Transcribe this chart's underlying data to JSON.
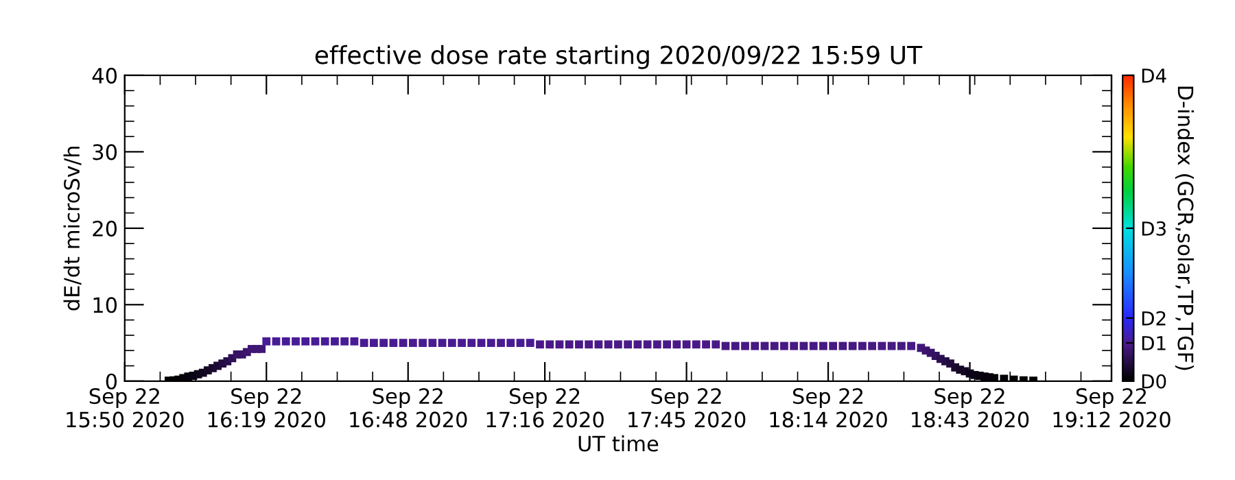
{
  "chart_data": {
    "type": "scatter",
    "title": "effective dose rate starting 2020/09/22 15:59 UT",
    "xlabel": "UT time",
    "ylabel": "dE/dt microSv/h",
    "clabel": "D-index (GCR,solar,TP,TGF)",
    "marker": "square",
    "grid": false,
    "xlim": [
      "2020-09-22T15:50",
      "2020-09-22T19:12"
    ],
    "xticks": [
      {
        "value": "2020-09-22T15:50",
        "label": "Sep 22\n15:50 2020"
      },
      {
        "value": "2020-09-22T16:19",
        "label": "Sep 22\n16:19 2020"
      },
      {
        "value": "2020-09-22T16:48",
        "label": "Sep 22\n16:48 2020"
      },
      {
        "value": "2020-09-22T17:16",
        "label": "Sep 22\n17:16 2020"
      },
      {
        "value": "2020-09-22T17:45",
        "label": "Sep 22\n17:45 2020"
      },
      {
        "value": "2020-09-22T18:14",
        "label": "Sep 22\n18:14 2020"
      },
      {
        "value": "2020-09-22T18:43",
        "label": "Sep 22\n18:43 2020"
      },
      {
        "value": "2020-09-22T19:12",
        "label": "Sep 22\n19:12 2020"
      }
    ],
    "ylim": [
      0,
      40
    ],
    "yticks": [
      0,
      10,
      20,
      30,
      40
    ],
    "clim": [
      0,
      40
    ],
    "cticks": [
      {
        "value": 0,
        "label": "D0"
      },
      {
        "value": 5,
        "label": "D1"
      },
      {
        "value": 8.25,
        "label": "D2"
      },
      {
        "value": 20,
        "label": "D3"
      },
      {
        "value": 40,
        "label": "D4"
      }
    ],
    "x": [
      "2020-09-22T15:59",
      "2020-09-22T16:00",
      "2020-09-22T16:01",
      "2020-09-22T16:02",
      "2020-09-22T16:03",
      "2020-09-22T16:04",
      "2020-09-22T16:05",
      "2020-09-22T16:06",
      "2020-09-22T16:07",
      "2020-09-22T16:08",
      "2020-09-22T16:09",
      "2020-09-22T16:10",
      "2020-09-22T16:11",
      "2020-09-22T16:12",
      "2020-09-22T16:13",
      "2020-09-22T16:14",
      "2020-09-22T16:15",
      "2020-09-22T16:16",
      "2020-09-22T16:17",
      "2020-09-22T16:18",
      "2020-09-22T16:19",
      "2020-09-22T16:21",
      "2020-09-22T16:23",
      "2020-09-22T16:25",
      "2020-09-22T16:27",
      "2020-09-22T16:29",
      "2020-09-22T16:31",
      "2020-09-22T16:33",
      "2020-09-22T16:35",
      "2020-09-22T16:37",
      "2020-09-22T16:39",
      "2020-09-22T16:41",
      "2020-09-22T16:43",
      "2020-09-22T16:45",
      "2020-09-22T16:47",
      "2020-09-22T16:49",
      "2020-09-22T16:51",
      "2020-09-22T16:53",
      "2020-09-22T16:55",
      "2020-09-22T16:57",
      "2020-09-22T16:59",
      "2020-09-22T17:01",
      "2020-09-22T17:03",
      "2020-09-22T17:05",
      "2020-09-22T17:07",
      "2020-09-22T17:09",
      "2020-09-22T17:11",
      "2020-09-22T17:13",
      "2020-09-22T17:15",
      "2020-09-22T17:17",
      "2020-09-22T17:19",
      "2020-09-22T17:21",
      "2020-09-22T17:23",
      "2020-09-22T17:25",
      "2020-09-22T17:27",
      "2020-09-22T17:29",
      "2020-09-22T17:31",
      "2020-09-22T17:33",
      "2020-09-22T17:35",
      "2020-09-22T17:37",
      "2020-09-22T17:39",
      "2020-09-22T17:41",
      "2020-09-22T17:43",
      "2020-09-22T17:45",
      "2020-09-22T17:47",
      "2020-09-22T17:49",
      "2020-09-22T17:51",
      "2020-09-22T17:53",
      "2020-09-22T17:55",
      "2020-09-22T17:57",
      "2020-09-22T17:59",
      "2020-09-22T18:01",
      "2020-09-22T18:03",
      "2020-09-22T18:05",
      "2020-09-22T18:07",
      "2020-09-22T18:09",
      "2020-09-22T18:11",
      "2020-09-22T18:13",
      "2020-09-22T18:15",
      "2020-09-22T18:17",
      "2020-09-22T18:19",
      "2020-09-22T18:21",
      "2020-09-22T18:23",
      "2020-09-22T18:25",
      "2020-09-22T18:27",
      "2020-09-22T18:29",
      "2020-09-22T18:31",
      "2020-09-22T18:33",
      "2020-09-22T18:34",
      "2020-09-22T18:35",
      "2020-09-22T18:36",
      "2020-09-22T18:37",
      "2020-09-22T18:38",
      "2020-09-22T18:39",
      "2020-09-22T18:40",
      "2020-09-22T18:41",
      "2020-09-22T18:42",
      "2020-09-22T18:43",
      "2020-09-22T18:44",
      "2020-09-22T18:45",
      "2020-09-22T18:46",
      "2020-09-22T18:47",
      "2020-09-22T18:48",
      "2020-09-22T18:50",
      "2020-09-22T18:52",
      "2020-09-22T18:54",
      "2020-09-22T18:56"
    ],
    "values": [
      0.05,
      0.1,
      0.2,
      0.4,
      0.6,
      0.7,
      0.9,
      1.1,
      1.4,
      1.7,
      2.0,
      2.3,
      2.6,
      3.0,
      3.5,
      3.5,
      3.8,
      4.2,
      4.2,
      4.2,
      5.2,
      5.2,
      5.2,
      5.2,
      5.2,
      5.2,
      5.2,
      5.2,
      5.2,
      5.2,
      5.0,
      5.0,
      5.0,
      5.0,
      5.0,
      5.0,
      5.0,
      5.0,
      5.0,
      5.0,
      5.0,
      5.0,
      5.0,
      5.0,
      5.0,
      5.0,
      5.0,
      5.0,
      4.8,
      4.8,
      4.8,
      4.8,
      4.8,
      4.8,
      4.8,
      4.8,
      4.8,
      4.8,
      4.8,
      4.8,
      4.8,
      4.8,
      4.8,
      4.8,
      4.8,
      4.8,
      4.8,
      4.6,
      4.6,
      4.6,
      4.6,
      4.6,
      4.6,
      4.6,
      4.6,
      4.6,
      4.6,
      4.6,
      4.6,
      4.6,
      4.6,
      4.6,
      4.6,
      4.6,
      4.6,
      4.6,
      4.6,
      4.35,
      4.0,
      3.7,
      3.3,
      2.9,
      2.6,
      2.3,
      1.8,
      1.5,
      1.3,
      1.0,
      0.8,
      0.7,
      0.6,
      0.5,
      0.4,
      0.3,
      0.2,
      0.1,
      0.05
    ],
    "cvalues": [
      0.05,
      0.1,
      0.2,
      0.4,
      0.6,
      0.7,
      0.9,
      1.1,
      1.4,
      1.7,
      2.0,
      2.3,
      2.6,
      3.0,
      3.5,
      3.5,
      3.8,
      4.2,
      4.2,
      4.2,
      5.2,
      5.2,
      5.2,
      5.2,
      5.2,
      5.2,
      5.2,
      5.2,
      5.2,
      5.2,
      5.0,
      5.0,
      5.0,
      5.0,
      5.0,
      5.0,
      5.0,
      5.0,
      5.0,
      5.0,
      5.0,
      5.0,
      5.0,
      5.0,
      5.0,
      5.0,
      5.0,
      5.0,
      4.8,
      4.8,
      4.8,
      4.8,
      4.8,
      4.8,
      4.8,
      4.8,
      4.8,
      4.8,
      4.8,
      4.8,
      4.8,
      4.8,
      4.8,
      4.8,
      4.8,
      4.8,
      4.8,
      4.6,
      4.6,
      4.6,
      4.6,
      4.6,
      4.6,
      4.6,
      4.6,
      4.6,
      4.6,
      4.6,
      4.6,
      4.6,
      4.6,
      4.6,
      4.6,
      4.6,
      4.6,
      4.6,
      4.6,
      4.35,
      4.0,
      3.7,
      3.3,
      2.9,
      2.6,
      2.3,
      1.8,
      1.5,
      1.3,
      1.0,
      0.8,
      0.7,
      0.6,
      0.5,
      0.4,
      0.3,
      0.2,
      0.1,
      0.05
    ]
  }
}
